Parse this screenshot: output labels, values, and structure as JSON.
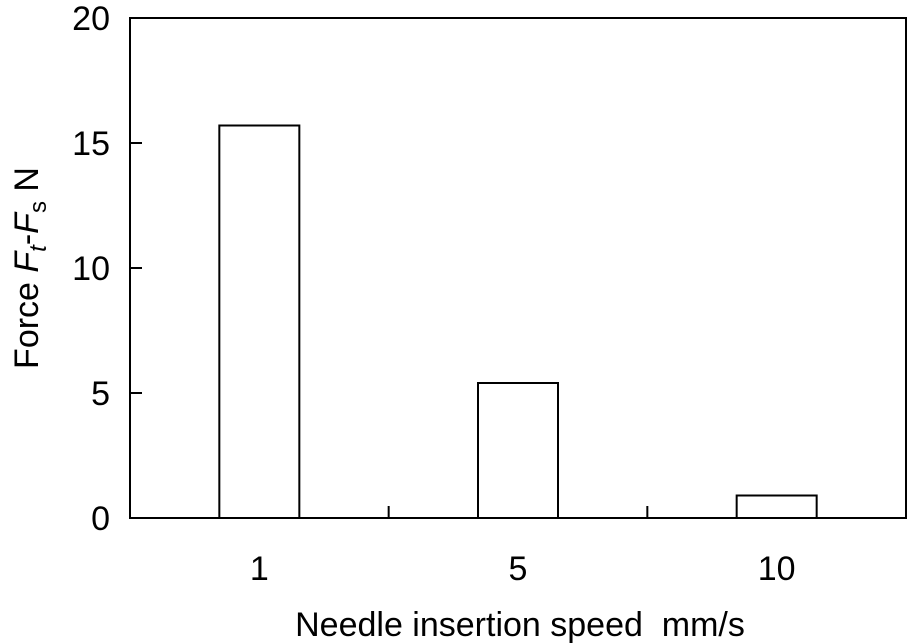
{
  "chart_data": {
    "type": "bar",
    "categories": [
      "1",
      "5",
      "10"
    ],
    "values": [
      15.7,
      5.4,
      0.9
    ],
    "xlabel": "Needle insertion speed  mm/s",
    "ylabel": {
      "prefix": "Force ",
      "var1": "F",
      "sub1": "t",
      "dash": "-",
      "var2": "F",
      "sub2": "s",
      "unit": " N"
    },
    "ylim": [
      0,
      20
    ],
    "yticks": [
      "0",
      "5",
      "10",
      "15",
      "20"
    ],
    "grid": false,
    "legend": "none",
    "colors": {
      "bar_fill": "#ffffff",
      "bar_stroke": "#000000",
      "axis": "#000000"
    }
  }
}
